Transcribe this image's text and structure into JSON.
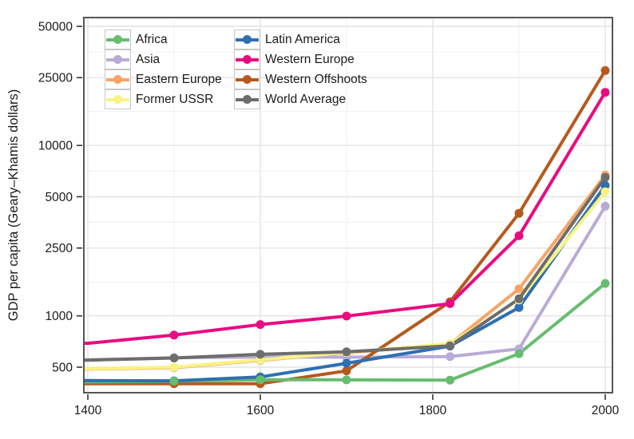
{
  "chart_data": {
    "type": "line",
    "title": "",
    "xlabel": "",
    "ylabel": "GDP per capita (Geary–Khamis dollars)",
    "yscale": "log",
    "xlim": [
      1400,
      2000
    ],
    "ylim": [
      390,
      55000
    ],
    "grid": "major and minor, light gray",
    "legend_position": "top-left inside plot, 2 columns, boxed keys",
    "x": [
      1400,
      1500,
      1600,
      1700,
      1820,
      1900,
      2000
    ],
    "xticks": [
      1400,
      1600,
      1800,
      2000
    ],
    "yticks": [
      500,
      1000,
      2500,
      5000,
      10000,
      25000,
      50000
    ],
    "series": [
      {
        "name": "Africa",
        "color": "#66bd6f",
        "values": [
          410,
          414,
          422,
          421,
          420,
          600,
          1550
        ]
      },
      {
        "name": "Asia",
        "color": "#b9abd6",
        "values": [
          552,
          568,
          574,
          572,
          577,
          640,
          4400
        ]
      },
      {
        "name": "Eastern Europe",
        "color": "#f8a466",
        "values": [
          487,
          496,
          548,
          606,
          683,
          1440,
          6700
        ]
      },
      {
        "name": "Former USSR",
        "color": "#f8f382",
        "values": [
          490,
          500,
          552,
          610,
          688,
          1240,
          5350
        ]
      },
      {
        "name": "Latin America",
        "color": "#2e6fb2",
        "values": [
          417,
          416,
          438,
          527,
          665,
          1120,
          5830
        ]
      },
      {
        "name": "Western Europe",
        "color": "#e90b80",
        "values": [
          690,
          771,
          889,
          997,
          1180,
          2950,
          20500
        ]
      },
      {
        "name": "Western Offshoots",
        "color": "#b55a1d",
        "values": [
          400,
          400,
          400,
          476,
          1210,
          4000,
          27500
        ]
      },
      {
        "name": "World Average",
        "color": "#6d6d6d",
        "values": [
          550,
          566,
          595,
          615,
          667,
          1260,
          6500
        ]
      }
    ]
  },
  "colors": {
    "panel_border": "#555555",
    "grid_major": "#e4e4e4",
    "grid_minor": "#f1f1f1",
    "tick_mark": "#333333",
    "tick_text": "#1a1a1a"
  }
}
